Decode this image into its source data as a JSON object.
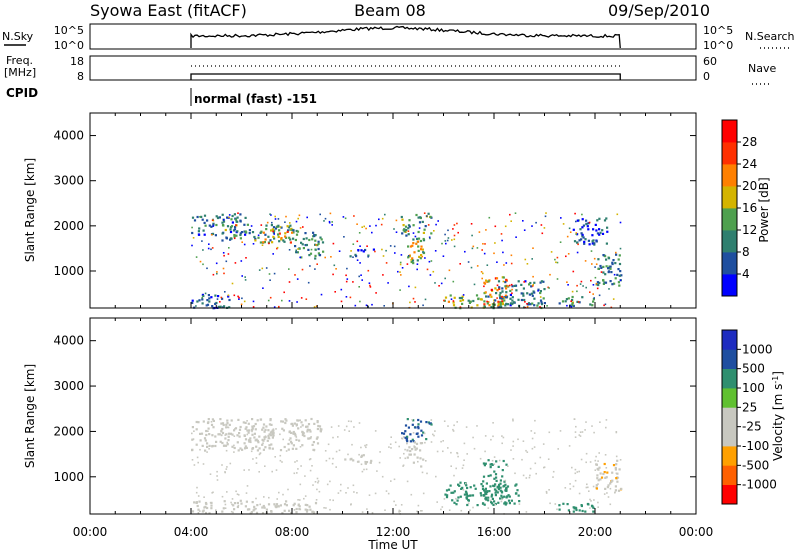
{
  "header": {
    "left": "Syowa East (fitACF)",
    "center": "Beam 08",
    "right": "09/Sep/2010"
  },
  "strips": {
    "nsky": {
      "label": "N.Sky",
      "tick_top": "10^5",
      "tick_bottom": "10^0",
      "right_label": "N.Search"
    },
    "freq": {
      "label_line1": "Freq.",
      "label_line2": "[MHz]",
      "tick_top": "18",
      "tick_bottom": "8",
      "right_tick_top": "60",
      "right_tick_bottom": "0",
      "right_label": "Nave"
    },
    "cpid": {
      "label": "CPID",
      "text": "normal (fast) -151"
    }
  },
  "colors": {
    "power": [
      "#0000ff",
      "#1f4f9f",
      "#2f7f6f",
      "#4fa04f",
      "#d4b400",
      "#ff8000",
      "#ff3000",
      "#ff0000"
    ],
    "velocity": [
      "#ff0000",
      "#ff6000",
      "#ffa000",
      "#c8c8c0",
      "#c8c8c0",
      "#60c030",
      "#2f8f6f",
      "#1f4fa0",
      "#1e2cc0"
    ]
  },
  "chart_data": [
    {
      "type": "heatmap",
      "name": "power",
      "ylabel": "Slant Range [km]",
      "yticks": [
        "1000",
        "2000",
        "3000",
        "4000"
      ],
      "ylim": [
        180,
        4500
      ],
      "xlim": [
        0,
        24
      ],
      "colorbar_label": "Power [dB]",
      "colorbar_ticks": [
        "4",
        "8",
        "12",
        "16",
        "20",
        "24",
        "28"
      ],
      "colorbar_range": [
        0,
        32
      ],
      "regions": [
        {
          "t": [
            4.0,
            6.2
          ],
          "r": [
            1800,
            2300
          ],
          "v": 8
        },
        {
          "t": [
            5.2,
            8.2
          ],
          "r": [
            1650,
            2050
          ],
          "v": 12
        },
        {
          "t": [
            6.8,
            8.0
          ],
          "r": [
            1650,
            1900
          ],
          "v": 18
        },
        {
          "t": [
            8.0,
            9.2
          ],
          "r": [
            1300,
            1900
          ],
          "v": 10
        },
        {
          "t": [
            4.0,
            5.5
          ],
          "r": [
            200,
            500
          ],
          "v": 6
        },
        {
          "t": [
            10.0,
            11.2
          ],
          "r": [
            1350,
            1500
          ],
          "v": 7
        },
        {
          "t": [
            12.2,
            13.5
          ],
          "r": [
            1800,
            2300
          ],
          "v": 12
        },
        {
          "t": [
            12.5,
            13.2
          ],
          "r": [
            1200,
            1800
          ],
          "v": 16
        },
        {
          "t": [
            14.0,
            16.5
          ],
          "r": [
            200,
            500
          ],
          "v": 14
        },
        {
          "t": [
            15.5,
            16.5
          ],
          "r": [
            200,
            900
          ],
          "v": 20
        },
        {
          "t": [
            16.0,
            18.0
          ],
          "r": [
            200,
            800
          ],
          "v": 8
        },
        {
          "t": [
            18.5,
            20.0
          ],
          "r": [
            250,
            450
          ],
          "v": 14
        },
        {
          "t": [
            20.0,
            21.0
          ],
          "r": [
            700,
            1400
          ],
          "v": 10
        },
        {
          "t": [
            19.0,
            20.5
          ],
          "r": [
            1600,
            2200
          ],
          "v": 6
        }
      ]
    },
    {
      "type": "heatmap",
      "name": "velocity",
      "ylabel": "Slant Range [km]",
      "yticks": [
        "1000",
        "2000",
        "3000",
        "4000"
      ],
      "ylim": [
        180,
        4500
      ],
      "xlim": [
        0,
        24
      ],
      "xlabel": "Time UT",
      "xticks": [
        "00:00",
        "04:00",
        "08:00",
        "12:00",
        "16:00",
        "20:00",
        "00:00"
      ],
      "colorbar_label": "Velocity [m s",
      "colorbar_label_sup": "-1",
      "colorbar_ticks": [
        "-1000",
        "-500",
        "-100",
        "-25",
        "25",
        "100",
        "500",
        "1000"
      ],
      "regions": [
        {
          "t": [
            4.0,
            9.2
          ],
          "r": [
            1600,
            2300
          ],
          "v": 0
        },
        {
          "t": [
            4.0,
            9.0
          ],
          "r": [
            200,
            500
          ],
          "v": -60
        },
        {
          "t": [
            10.0,
            11.2
          ],
          "r": [
            1300,
            1500
          ],
          "v": 0
        },
        {
          "t": [
            12.2,
            13.5
          ],
          "r": [
            1800,
            2300
          ],
          "v": 600
        },
        {
          "t": [
            12.5,
            13.2
          ],
          "r": [
            1200,
            1800
          ],
          "v": 0
        },
        {
          "t": [
            14.0,
            17.0
          ],
          "r": [
            400,
            900
          ],
          "v": 200
        },
        {
          "t": [
            15.5,
            16.5
          ],
          "r": [
            400,
            1400
          ],
          "v": 300
        },
        {
          "t": [
            18.5,
            20.0
          ],
          "r": [
            250,
            450
          ],
          "v": 400
        },
        {
          "t": [
            20.0,
            21.0
          ],
          "r": [
            700,
            1400
          ],
          "v": -80
        }
      ]
    }
  ]
}
